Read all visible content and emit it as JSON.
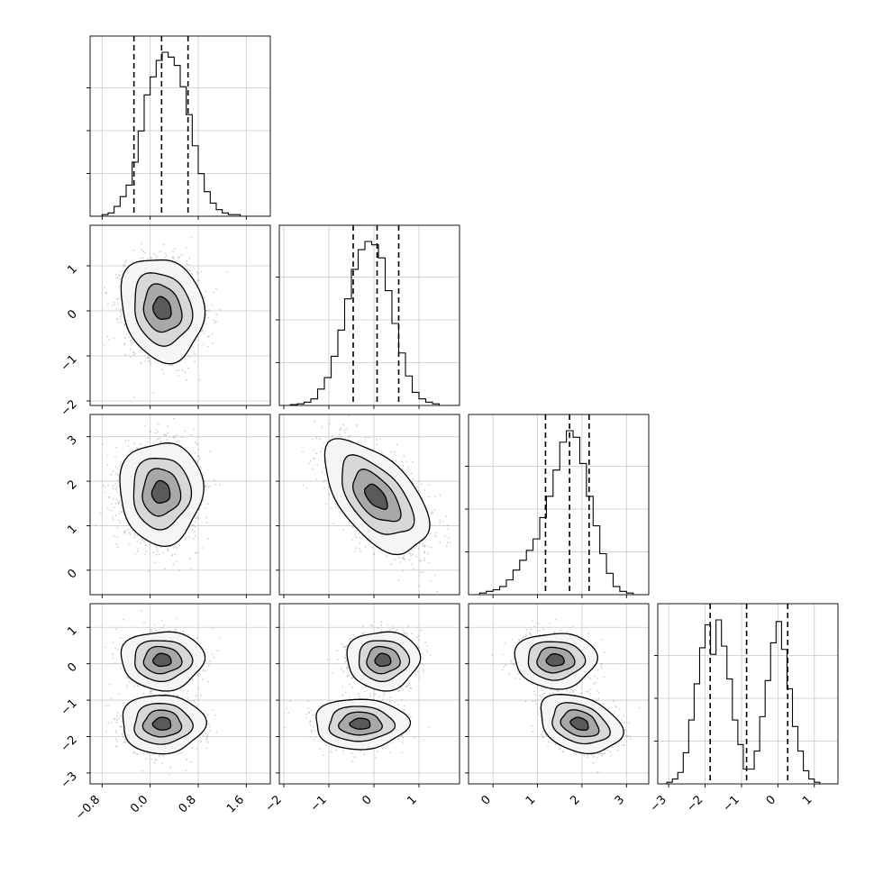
{
  "chart_data": {
    "type": "corner",
    "n_params": 4,
    "panels": [
      {
        "name": "param-0",
        "xlim": [
          -1.0,
          2.0
        ],
        "ticks": [
          -0.8,
          0.0,
          0.8,
          1.6
        ],
        "tick_labels": [
          "−0.8",
          "0.0",
          "0.8",
          "1.6"
        ]
      },
      {
        "name": "param-1",
        "xlim": [
          -2.1,
          1.9
        ],
        "ticks": [
          -2,
          -1,
          0,
          1
        ],
        "tick_labels": [
          "−2",
          "−1",
          "0",
          "1"
        ]
      },
      {
        "name": "param-2",
        "xlim": [
          -0.55,
          3.5
        ],
        "ticks": [
          0,
          1,
          2,
          3
        ],
        "tick_labels": [
          "0",
          "1",
          "2",
          "3"
        ]
      },
      {
        "name": "param-3",
        "xlim": [
          -3.3,
          1.65
        ],
        "ticks": [
          -3,
          -2,
          -1,
          0,
          1
        ],
        "tick_labels": [
          "−3",
          "−2",
          "−1",
          "0",
          "1"
        ]
      }
    ],
    "histograms": [
      {
        "param": 0,
        "edges": [
          -1.0,
          -0.9,
          -0.8,
          -0.7,
          -0.6,
          -0.5,
          -0.4,
          -0.3,
          -0.2,
          -0.1,
          0.0,
          0.1,
          0.2,
          0.3,
          0.4,
          0.5,
          0.6,
          0.7,
          0.8,
          0.9,
          1.0,
          1.1,
          1.2,
          1.3,
          1.4,
          1.5,
          1.6,
          1.7,
          1.8,
          1.9,
          2.0
        ],
        "counts": [
          0,
          0,
          0.01,
          0.02,
          0.06,
          0.12,
          0.19,
          0.33,
          0.52,
          0.74,
          0.85,
          0.95,
          1.0,
          0.97,
          0.92,
          0.79,
          0.62,
          0.43,
          0.26,
          0.15,
          0.08,
          0.04,
          0.02,
          0.01,
          0.01,
          0,
          0,
          0,
          0,
          0
        ],
        "quantiles": [
          -0.27,
          0.19,
          0.63
        ]
      },
      {
        "param": 1,
        "edges": [
          -2.0,
          -1.85,
          -1.7,
          -1.55,
          -1.4,
          -1.25,
          -1.1,
          -0.95,
          -0.8,
          -0.65,
          -0.5,
          -0.35,
          -0.2,
          -0.05,
          0.1,
          0.25,
          0.4,
          0.55,
          0.7,
          0.85,
          1.0,
          1.15,
          1.3,
          1.45,
          1.6,
          1.75,
          1.9
        ],
        "counts": [
          0,
          0.005,
          0.01,
          0.02,
          0.04,
          0.1,
          0.17,
          0.3,
          0.46,
          0.65,
          0.83,
          0.95,
          1.0,
          0.98,
          0.9,
          0.7,
          0.5,
          0.32,
          0.18,
          0.08,
          0.04,
          0.02,
          0.01,
          0,
          0,
          0
        ],
        "quantiles": [
          -0.46,
          0.07,
          0.55
        ]
      },
      {
        "param": 2,
        "edges": [
          -0.45,
          -0.3,
          -0.15,
          0.0,
          0.15,
          0.3,
          0.45,
          0.6,
          0.75,
          0.9,
          1.05,
          1.2,
          1.35,
          1.5,
          1.65,
          1.8,
          1.95,
          2.1,
          2.25,
          2.4,
          2.55,
          2.7,
          2.85,
          3.0,
          3.15,
          3.3,
          3.45
        ],
        "counts": [
          0,
          0.01,
          0.02,
          0.03,
          0.05,
          0.09,
          0.15,
          0.21,
          0.27,
          0.34,
          0.47,
          0.6,
          0.76,
          0.93,
          1.0,
          0.96,
          0.8,
          0.6,
          0.42,
          0.25,
          0.13,
          0.05,
          0.02,
          0.01,
          0,
          0
        ],
        "quantiles": [
          1.18,
          1.72,
          2.16
        ]
      },
      {
        "param": 3,
        "edges": [
          -3.2,
          -3.05,
          -2.9,
          -2.75,
          -2.6,
          -2.45,
          -2.3,
          -2.15,
          -2.0,
          -1.85,
          -1.7,
          -1.55,
          -1.4,
          -1.25,
          -1.1,
          -0.95,
          -0.8,
          -0.65,
          -0.5,
          -0.35,
          -0.2,
          -0.05,
          0.1,
          0.25,
          0.4,
          0.55,
          0.7,
          0.85,
          1.0,
          1.15,
          1.3,
          1.45,
          1.6
        ],
        "counts": [
          0,
          0.01,
          0.03,
          0.07,
          0.19,
          0.39,
          0.61,
          0.83,
          0.97,
          0.79,
          1.0,
          0.84,
          0.64,
          0.39,
          0.24,
          0.09,
          0.09,
          0.2,
          0.41,
          0.63,
          0.86,
          0.99,
          0.82,
          0.58,
          0.35,
          0.2,
          0.08,
          0.03,
          0.01,
          0,
          0,
          0
        ],
        "quantiles": [
          -1.86,
          -0.86,
          0.27
        ]
      }
    ],
    "scatter_panels": [
      {
        "x_param": 0,
        "y_param": 1,
        "components": [
          {
            "cx": 0.2,
            "cy": 0.05,
            "sx": 0.3,
            "sy": 0.5,
            "rho": -0.15,
            "w": 1.0
          }
        ]
      },
      {
        "x_param": 0,
        "y_param": 2,
        "components": [
          {
            "cx": 0.18,
            "cy": 1.75,
            "sx": 0.3,
            "sy": 0.5,
            "rho": 0.0,
            "w": 1.0
          }
        ]
      },
      {
        "x_param": 1,
        "y_param": 2,
        "components": [
          {
            "cx": 0.05,
            "cy": 1.65,
            "sx": 0.5,
            "sy": 0.55,
            "rho": -0.55,
            "w": 1.0
          }
        ]
      },
      {
        "x_param": 0,
        "y_param": 3,
        "components": [
          {
            "cx": 0.2,
            "cy": 0.1,
            "sx": 0.3,
            "sy": 0.35,
            "rho": 0.0,
            "w": 0.5
          },
          {
            "cx": 0.2,
            "cy": -1.65,
            "sx": 0.3,
            "sy": 0.35,
            "rho": 0.0,
            "w": 0.5
          }
        ]
      },
      {
        "x_param": 1,
        "y_param": 3,
        "components": [
          {
            "cx": 0.2,
            "cy": 0.1,
            "sx": 0.35,
            "sy": 0.35,
            "rho": 0.0,
            "w": 0.5
          },
          {
            "cx": -0.3,
            "cy": -1.65,
            "sx": 0.45,
            "sy": 0.3,
            "rho": 0.0,
            "w": 0.5
          }
        ]
      },
      {
        "x_param": 2,
        "y_param": 3,
        "components": [
          {
            "cx": 1.4,
            "cy": 0.1,
            "sx": 0.4,
            "sy": 0.33,
            "rho": 0.0,
            "w": 0.5
          },
          {
            "cx": 1.95,
            "cy": -1.65,
            "sx": 0.4,
            "sy": 0.35,
            "rho": -0.3,
            "w": 0.5
          }
        ]
      }
    ],
    "ytick_params": [
      {
        "param": 1,
        "ylim": [
          -2.1,
          1.9
        ],
        "ticks": [
          -2,
          -1,
          0,
          1
        ],
        "tick_labels": [
          "−2",
          "−1",
          "0",
          "1"
        ]
      },
      {
        "param": 2,
        "ylim": [
          -0.55,
          3.5
        ],
        "ticks": [
          0,
          1,
          2,
          3
        ],
        "tick_labels": [
          "0",
          "1",
          "2",
          "3"
        ]
      },
      {
        "param": 3,
        "ylim": [
          -3.3,
          1.65
        ],
        "ticks": [
          -3,
          -2,
          -1,
          0,
          1
        ],
        "tick_labels": [
          "−3",
          "−2",
          "−1",
          "0",
          "1"
        ]
      }
    ],
    "grid": true,
    "contour_levels": [
      0.39,
      0.86,
      0.99,
      0.9997
    ],
    "colors": {
      "ink": "#000000",
      "scatter": "#9a9a9a",
      "grid": "#c8c8c8"
    }
  }
}
